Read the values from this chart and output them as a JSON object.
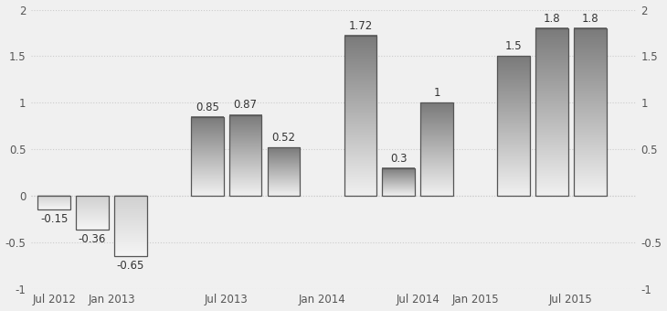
{
  "values": [
    -0.15,
    -0.36,
    -0.65,
    0.85,
    0.87,
    0.52,
    1.72,
    0.3,
    1.0,
    1.5,
    1.8,
    1.8
  ],
  "bar_positions": [
    0,
    1,
    2,
    4,
    5,
    6,
    8,
    9,
    10,
    12,
    13,
    14
  ],
  "x_tick_positions": [
    0,
    1.5,
    4.5,
    7,
    9.5,
    11,
    13.5
  ],
  "x_tick_labels": [
    "Jul 2012",
    "Jan 2013",
    "Jul 2013",
    "Jan 2014",
    "Jul 2014",
    "Jan 2015",
    "Jul 2015"
  ],
  "ylim": [
    -1.0,
    2.0
  ],
  "yticks": [
    -1.0,
    -0.5,
    0.0,
    0.5,
    1.0,
    1.5,
    2.0
  ],
  "ytick_labels_left": [
    "-1",
    "-0.5",
    "0",
    "0.5",
    "1",
    "1.5",
    "2"
  ],
  "ytick_labels_right": [
    "-1",
    "-0.5",
    "",
    "0.5",
    "1",
    "1.5",
    "2"
  ],
  "background_color": "#f0f0f0",
  "bar_width": 0.85,
  "label_fontsize": 8.5,
  "tick_fontsize": 8.5,
  "grid_color": "#cccccc",
  "bar_edge_color": "#555555",
  "grad_top_pos": "#7a7a7a",
  "grad_bot_pos": "#f0f0f0",
  "neg_color_top": "#d0d0d0",
  "neg_color_bot": "#f5f5f5"
}
